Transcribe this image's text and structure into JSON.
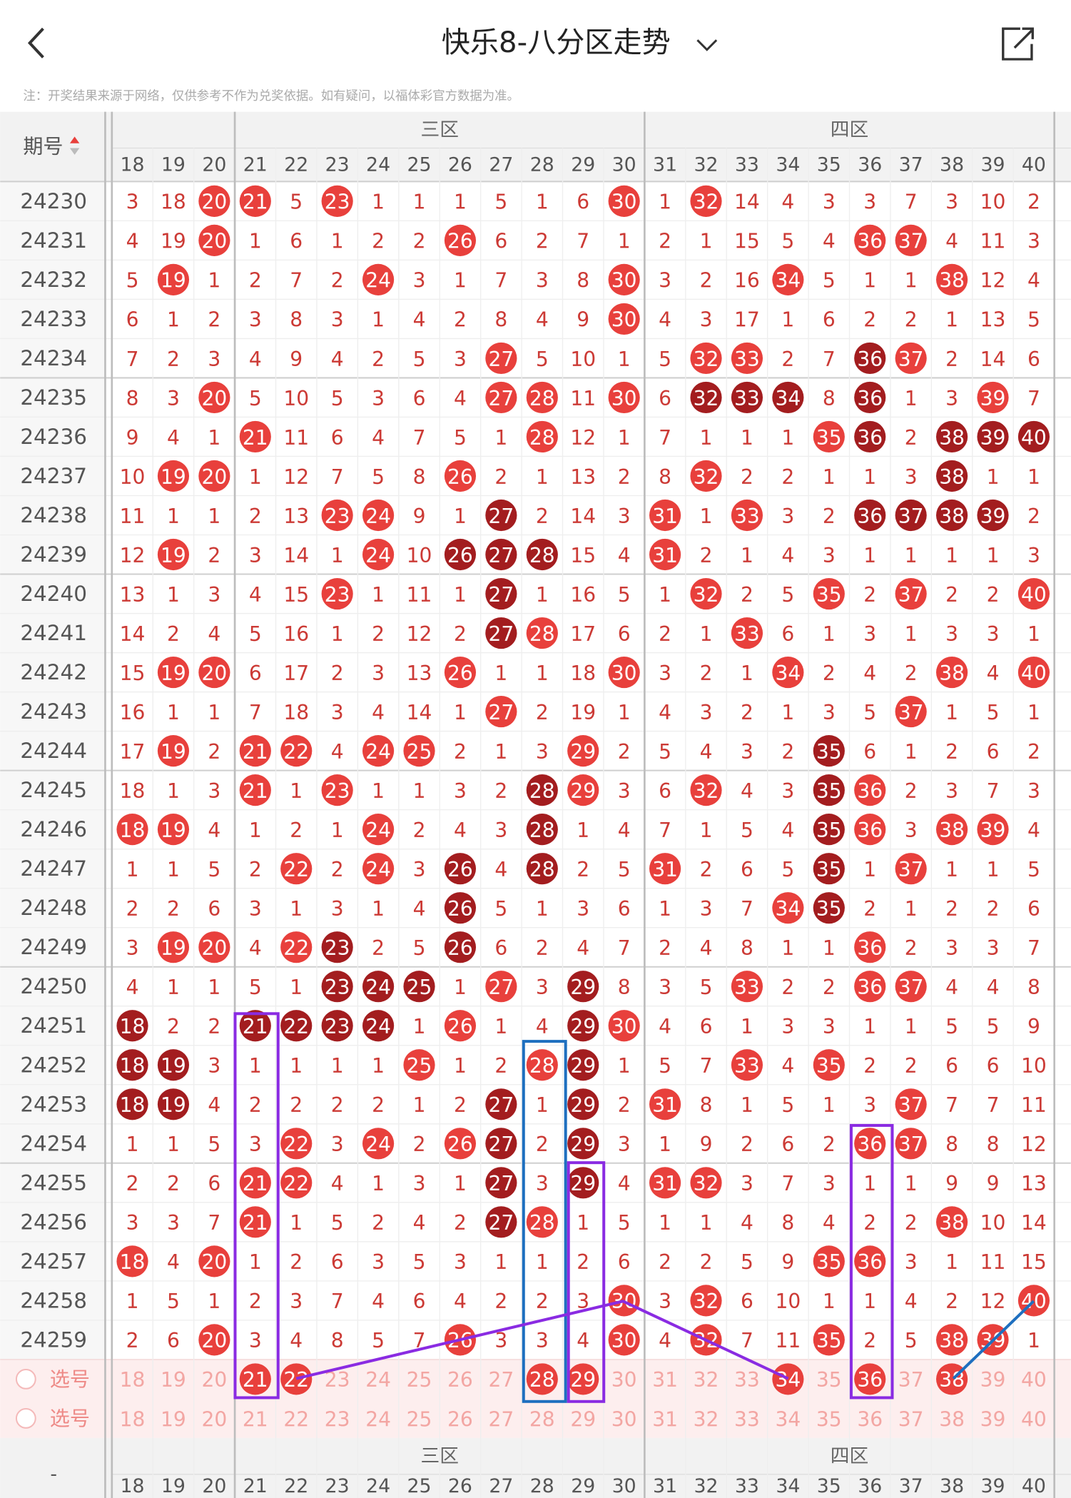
{
  "header": {
    "title": "快乐8-八分区走势"
  },
  "note": "注：开奖结果来源于网络，仅供参考不作为兑奖依据。如有疑问，以福体彩官方数据为准。",
  "table": {
    "period_header": "期号",
    "zones": [
      {
        "label": null,
        "columns": [
          18,
          19,
          20
        ]
      },
      {
        "label": "三区",
        "columns": [
          21,
          22,
          23,
          24,
          25,
          26,
          27,
          28,
          29,
          30
        ]
      },
      {
        "label": "四区",
        "columns": [
          31,
          32,
          33,
          34,
          35,
          36,
          37,
          38,
          39,
          40
        ]
      }
    ],
    "ball_colors": {
      "r": "#e8403c",
      "d": "#a31d1f"
    },
    "rows": [
      {
        "period": "24230",
        "values": [
          3,
          18,
          20,
          21,
          5,
          23,
          1,
          1,
          1,
          5,
          1,
          6,
          30,
          1,
          32,
          14,
          4,
          3,
          3,
          7,
          3,
          10,
          2
        ],
        "styles": "--rr-r------r-r--------"
      },
      {
        "period": "24231",
        "values": [
          4,
          19,
          20,
          1,
          6,
          1,
          2,
          2,
          26,
          6,
          2,
          7,
          1,
          2,
          1,
          15,
          5,
          4,
          36,
          37,
          4,
          11,
          3
        ],
        "styles": "--r-----r---------rr---"
      },
      {
        "period": "24232",
        "values": [
          5,
          19,
          1,
          2,
          7,
          2,
          24,
          3,
          1,
          7,
          3,
          8,
          30,
          3,
          2,
          16,
          34,
          5,
          1,
          1,
          38,
          12,
          4
        ],
        "styles": "-r----r-----r---r---r--"
      },
      {
        "period": "24233",
        "values": [
          6,
          1,
          2,
          3,
          8,
          3,
          1,
          4,
          2,
          8,
          4,
          9,
          30,
          4,
          3,
          17,
          1,
          6,
          2,
          2,
          1,
          13,
          5
        ],
        "styles": "------------r----------"
      },
      {
        "period": "24234",
        "values": [
          7,
          2,
          3,
          4,
          9,
          4,
          2,
          5,
          3,
          27,
          5,
          10,
          1,
          5,
          32,
          33,
          2,
          7,
          36,
          37,
          2,
          14,
          6
        ],
        "styles": "---------r----rr--dr---"
      },
      {
        "period": "24235",
        "values": [
          8,
          3,
          20,
          5,
          10,
          5,
          3,
          6,
          4,
          27,
          28,
          11,
          30,
          6,
          32,
          33,
          34,
          8,
          36,
          1,
          3,
          39,
          7
        ],
        "styles": "--r------rr-r-ddd-d--r-"
      },
      {
        "period": "24236",
        "values": [
          9,
          4,
          1,
          21,
          11,
          6,
          4,
          7,
          5,
          1,
          28,
          12,
          1,
          7,
          1,
          1,
          1,
          35,
          36,
          2,
          38,
          39,
          40
        ],
        "styles": "---r------r------rd-ddd"
      },
      {
        "period": "24237",
        "values": [
          10,
          19,
          20,
          1,
          12,
          7,
          5,
          8,
          26,
          2,
          1,
          13,
          2,
          8,
          32,
          2,
          2,
          1,
          1,
          3,
          38,
          1,
          1
        ],
        "styles": "-rr-----r-----r-----d--"
      },
      {
        "period": "24238",
        "values": [
          11,
          1,
          1,
          2,
          13,
          23,
          24,
          9,
          1,
          27,
          2,
          14,
          3,
          31,
          1,
          33,
          3,
          2,
          36,
          37,
          38,
          39,
          2
        ],
        "styles": "-----rr--d---r-r--dddd-"
      },
      {
        "period": "24239",
        "values": [
          12,
          19,
          2,
          3,
          14,
          1,
          24,
          10,
          26,
          27,
          28,
          15,
          4,
          31,
          2,
          1,
          4,
          3,
          1,
          1,
          1,
          1,
          3
        ],
        "styles": "-r----r-ddd--r---------"
      },
      {
        "period": "24240",
        "values": [
          13,
          1,
          3,
          4,
          15,
          23,
          1,
          11,
          1,
          27,
          1,
          16,
          5,
          1,
          32,
          2,
          5,
          35,
          2,
          37,
          2,
          2,
          40
        ],
        "styles": "-----r---d----r--r-r--r"
      },
      {
        "period": "24241",
        "values": [
          14,
          2,
          4,
          5,
          16,
          1,
          2,
          12,
          2,
          27,
          28,
          17,
          6,
          2,
          1,
          33,
          6,
          1,
          3,
          1,
          3,
          3,
          1
        ],
        "styles": "---------dr----r-------"
      },
      {
        "period": "24242",
        "values": [
          15,
          19,
          20,
          6,
          17,
          2,
          3,
          13,
          26,
          1,
          1,
          18,
          30,
          3,
          2,
          1,
          34,
          2,
          4,
          2,
          38,
          4,
          40
        ],
        "styles": "-rr-----r---r---r---r-r"
      },
      {
        "period": "24243",
        "values": [
          16,
          1,
          1,
          7,
          18,
          3,
          4,
          14,
          1,
          27,
          2,
          19,
          1,
          4,
          3,
          2,
          1,
          3,
          5,
          37,
          1,
          5,
          1
        ],
        "styles": "---------r---------r---"
      },
      {
        "period": "24244",
        "values": [
          17,
          19,
          2,
          21,
          22,
          4,
          24,
          25,
          2,
          1,
          3,
          29,
          2,
          5,
          4,
          3,
          2,
          35,
          6,
          1,
          2,
          6,
          2
        ],
        "styles": "-r-rr-rr---r-----d-----"
      },
      {
        "period": "24245",
        "values": [
          18,
          1,
          3,
          21,
          1,
          23,
          1,
          1,
          3,
          2,
          28,
          29,
          3,
          6,
          32,
          4,
          3,
          35,
          36,
          2,
          3,
          7,
          3
        ],
        "styles": "---r-r----dr--r--dr----"
      },
      {
        "period": "24246",
        "values": [
          18,
          19,
          4,
          1,
          2,
          1,
          24,
          2,
          4,
          3,
          28,
          1,
          4,
          7,
          1,
          5,
          4,
          35,
          36,
          3,
          38,
          39,
          4
        ],
        "styles": "rr----r---d------dr-rr-"
      },
      {
        "period": "24247",
        "values": [
          1,
          1,
          5,
          2,
          22,
          2,
          24,
          3,
          26,
          4,
          28,
          2,
          5,
          31,
          2,
          6,
          5,
          35,
          1,
          37,
          1,
          1,
          5
        ],
        "styles": "----r-r-d-d--r---d-r---"
      },
      {
        "period": "24248",
        "values": [
          2,
          2,
          6,
          3,
          1,
          3,
          1,
          4,
          26,
          5,
          1,
          3,
          6,
          1,
          3,
          7,
          34,
          35,
          2,
          1,
          2,
          2,
          6
        ],
        "styles": "--------d-------rd-----"
      },
      {
        "period": "24249",
        "values": [
          3,
          19,
          20,
          4,
          22,
          23,
          2,
          5,
          26,
          6,
          2,
          4,
          7,
          2,
          4,
          8,
          1,
          1,
          36,
          2,
          3,
          3,
          7
        ],
        "styles": "-rr-rd--d---------r----"
      },
      {
        "period": "24250",
        "values": [
          4,
          1,
          1,
          5,
          1,
          23,
          24,
          25,
          1,
          27,
          3,
          29,
          8,
          3,
          5,
          33,
          2,
          2,
          36,
          37,
          4,
          4,
          8
        ],
        "styles": "-----ddd-r-d---r--rr---"
      },
      {
        "period": "24251",
        "values": [
          18,
          2,
          2,
          21,
          22,
          23,
          24,
          1,
          26,
          1,
          4,
          29,
          30,
          4,
          6,
          1,
          3,
          3,
          1,
          1,
          5,
          5,
          9
        ],
        "styles": "d--dddd-r--dr----------"
      },
      {
        "period": "24252",
        "values": [
          18,
          19,
          3,
          1,
          1,
          1,
          1,
          25,
          1,
          2,
          28,
          29,
          1,
          5,
          7,
          33,
          4,
          35,
          2,
          2,
          6,
          6,
          10
        ],
        "styles": "dd-----r--rd---r-r-----"
      },
      {
        "period": "24253",
        "values": [
          18,
          19,
          4,
          2,
          2,
          2,
          2,
          1,
          2,
          27,
          1,
          29,
          2,
          31,
          8,
          1,
          5,
          1,
          3,
          37,
          7,
          7,
          11
        ],
        "styles": "dd-------d-d-r-----r---"
      },
      {
        "period": "24254",
        "values": [
          1,
          1,
          5,
          3,
          22,
          3,
          24,
          2,
          26,
          27,
          2,
          29,
          3,
          1,
          9,
          2,
          6,
          2,
          36,
          37,
          8,
          8,
          12
        ],
        "styles": "----r-r-rd-d------rr---"
      },
      {
        "period": "24255",
        "values": [
          2,
          2,
          6,
          21,
          22,
          4,
          1,
          3,
          1,
          27,
          3,
          29,
          4,
          31,
          32,
          3,
          7,
          3,
          1,
          1,
          9,
          9,
          13
        ],
        "styles": "---rr----d-d-rr--------"
      },
      {
        "period": "24256",
        "values": [
          3,
          3,
          7,
          21,
          1,
          5,
          2,
          4,
          2,
          27,
          28,
          1,
          5,
          1,
          1,
          4,
          8,
          4,
          2,
          2,
          38,
          10,
          14
        ],
        "styles": "---r-----dr---------r--"
      },
      {
        "period": "24257",
        "values": [
          18,
          4,
          20,
          1,
          2,
          6,
          3,
          5,
          3,
          1,
          1,
          2,
          6,
          2,
          2,
          5,
          9,
          35,
          36,
          3,
          1,
          11,
          15
        ],
        "styles": "r-r--------------rr----"
      },
      {
        "period": "24258",
        "values": [
          1,
          5,
          1,
          2,
          3,
          7,
          4,
          6,
          4,
          2,
          2,
          3,
          30,
          3,
          32,
          6,
          10,
          1,
          1,
          4,
          2,
          12,
          40
        ],
        "styles": "------------r-r-------r"
      },
      {
        "period": "24259",
        "values": [
          2,
          6,
          20,
          3,
          4,
          8,
          5,
          7,
          26,
          3,
          3,
          4,
          30,
          4,
          32,
          7,
          11,
          35,
          2,
          5,
          38,
          39,
          1
        ],
        "styles": "--r-----r---r-r--r--rr-"
      }
    ],
    "select_rows": [
      {
        "label": "选号",
        "styles": "---rr-----rr----r-r-r--"
      },
      {
        "label": "选号",
        "styles": "-----------------------"
      }
    ],
    "footer_period": "-"
  }
}
